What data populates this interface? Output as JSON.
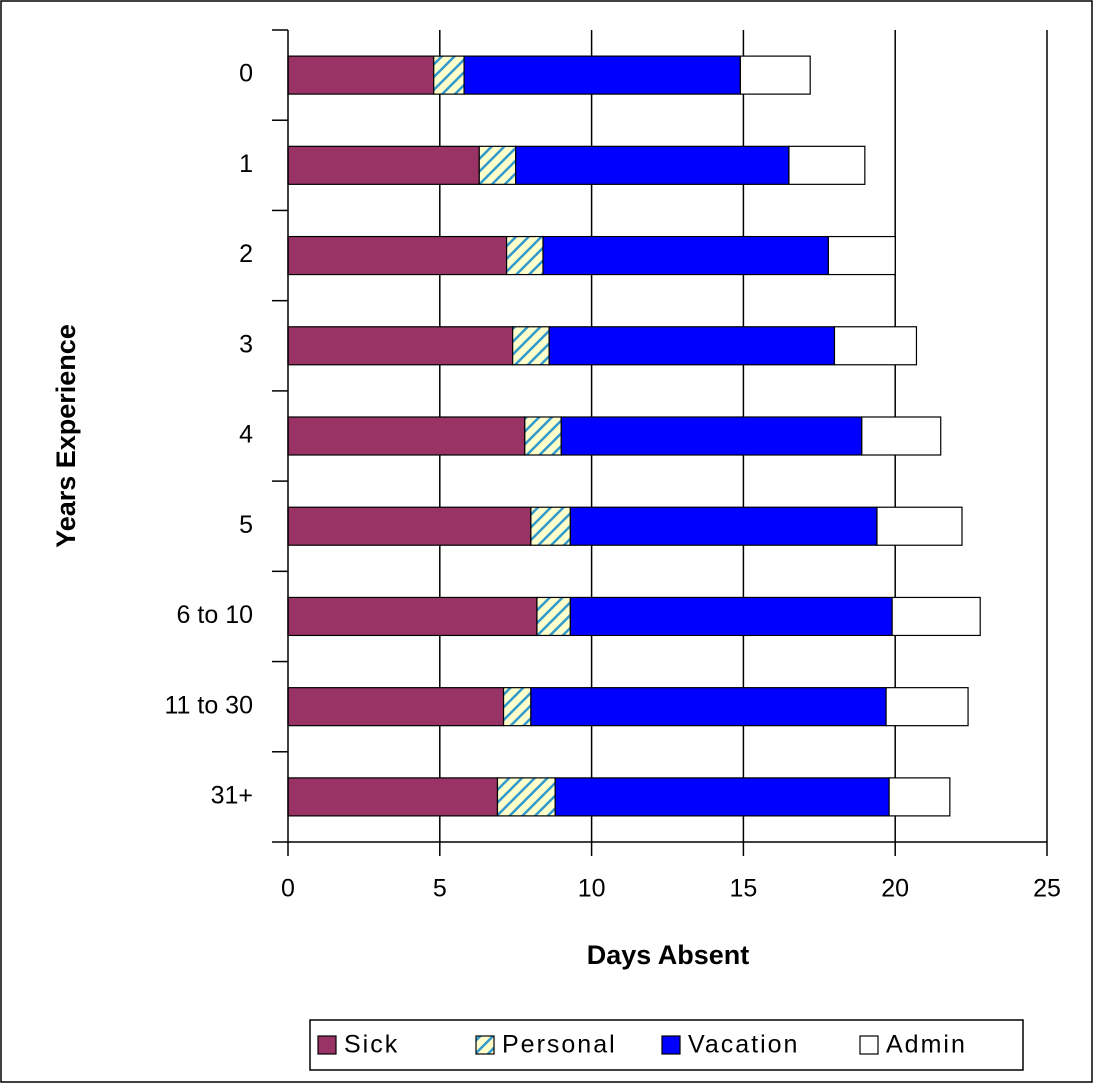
{
  "chart_data": {
    "type": "stacked-hbar",
    "x_label": "Days Absent",
    "y_label": "Years Experience",
    "categories": [
      "0",
      "1",
      "2",
      "3",
      "4",
      "5",
      "6 to 10",
      "11 to 30",
      "31+"
    ],
    "series": [
      {
        "name": "Sick",
        "color": "#993366",
        "values": [
          4.8,
          6.3,
          7.2,
          7.4,
          7.8,
          8.0,
          8.2,
          7.1,
          6.9
        ]
      },
      {
        "name": "Personal",
        "color": "#ffffcc",
        "pattern": "hatch",
        "values": [
          1.0,
          1.2,
          1.2,
          1.2,
          1.2,
          1.3,
          1.1,
          0.9,
          1.9
        ]
      },
      {
        "name": "Vacation",
        "color": "#0000ff",
        "values": [
          9.1,
          9.0,
          9.4,
          9.4,
          9.9,
          10.1,
          10.6,
          11.7,
          11.0
        ]
      },
      {
        "name": "Admin",
        "color": "#ffffff",
        "values": [
          2.3,
          2.5,
          2.2,
          2.7,
          2.6,
          2.8,
          2.9,
          2.7,
          2.0
        ]
      }
    ],
    "xlim": [
      0,
      25
    ],
    "xticks": [
      0,
      5,
      10,
      15,
      20,
      25
    ],
    "grid": true
  }
}
